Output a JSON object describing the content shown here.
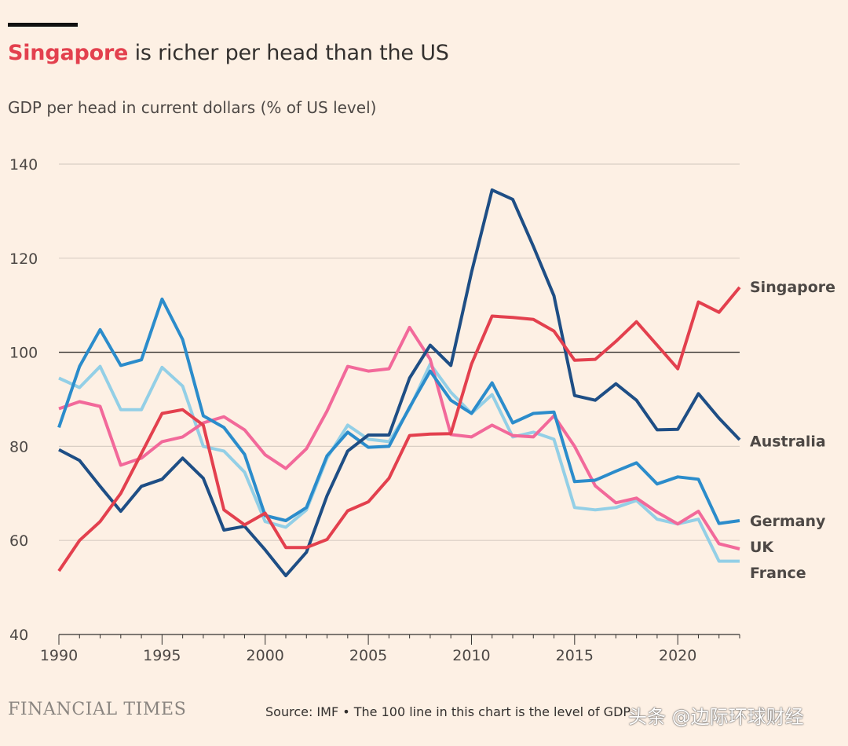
{
  "header": {
    "title_highlight": "Singapore",
    "title_rest": " is richer per head than the US",
    "subtitle": "GDP per head in current dollars (% of US level)"
  },
  "footer": {
    "brand": "FINANCIAL TIMES",
    "source": "Source: IMF • The 100 line in this chart is the level of GDP",
    "watermark": "头条 @边际环球财经"
  },
  "colors": {
    "background": "#fdf0e4",
    "gridline": "#d9cec4",
    "reference_line": "#33302e",
    "axis_text": "#4d4845"
  },
  "chart_data": {
    "type": "line",
    "title": "",
    "xlabel": "",
    "ylabel": "",
    "xlim": [
      1990,
      2023
    ],
    "ylim": [
      40,
      140
    ],
    "xticks": [
      1990,
      1995,
      2000,
      2005,
      2010,
      2015,
      2020
    ],
    "yticks": [
      40,
      60,
      80,
      100,
      120,
      140
    ],
    "reference_line": 100,
    "grid": true,
    "legend": "direct labels at right end of lines",
    "x": [
      1990,
      1991,
      1992,
      1993,
      1994,
      1995,
      1996,
      1997,
      1998,
      1999,
      2000,
      2001,
      2002,
      2003,
      2004,
      2005,
      2006,
      2007,
      2008,
      2009,
      2010,
      2011,
      2012,
      2013,
      2014,
      2015,
      2016,
      2017,
      2018,
      2019,
      2020,
      2021,
      2022,
      2023
    ],
    "series": [
      {
        "name": "France",
        "color": "#93cfe6",
        "values": [
          94.5,
          92.5,
          97,
          87.8,
          87.8,
          96.8,
          92.8,
          80,
          79,
          74.5,
          64,
          62.8,
          66.5,
          77.5,
          84.5,
          81.5,
          81,
          88,
          97.5,
          91.5,
          87,
          91,
          82,
          83,
          81.5,
          67,
          66.5,
          67,
          68.5,
          64.5,
          63.5,
          64.5,
          55.6,
          55.6
        ]
      },
      {
        "name": "UK",
        "color": "#f2699a",
        "values": [
          88,
          89.5,
          88.5,
          76,
          77.5,
          81,
          82,
          85,
          86.3,
          83.5,
          78.2,
          75.3,
          79.5,
          87.5,
          97,
          96,
          96.5,
          105.3,
          98.5,
          82.5,
          82,
          84.5,
          82.3,
          82,
          86.5,
          80,
          71.6,
          68,
          69,
          66,
          63.5,
          66.2,
          59.3,
          58.2
        ]
      },
      {
        "name": "Germany",
        "color": "#2b8ccb",
        "values": [
          84,
          97,
          104.8,
          97.2,
          98.4,
          111.3,
          102.7,
          86.5,
          84,
          78.3,
          65.3,
          64.2,
          67,
          78,
          83,
          79.8,
          80,
          88.3,
          96,
          89.8,
          87,
          93.5,
          85,
          87,
          87.3,
          72.5,
          72.8,
          74.7,
          76.5,
          72,
          73.5,
          73,
          63.6,
          64.2
        ]
      },
      {
        "name": "Australia",
        "color": "#1e4e85",
        "values": [
          79.3,
          77,
          71.5,
          66.2,
          71.5,
          73,
          77.5,
          73.2,
          62.2,
          63,
          58,
          52.5,
          57.5,
          69.5,
          79,
          82.4,
          82.4,
          94.5,
          101.5,
          97.2,
          117,
          134.5,
          132.5,
          122.5,
          112,
          90.8,
          89.8,
          93.3,
          89.8,
          83.5,
          83.6,
          91.2,
          86,
          81.4
        ]
      },
      {
        "name": "Singapore",
        "color": "#e3404e",
        "values": [
          53.5,
          60,
          64,
          70,
          78.5,
          87,
          87.8,
          84.5,
          66.5,
          63.3,
          65.8,
          58.5,
          58.5,
          60.2,
          66.3,
          68.2,
          73.2,
          82.3,
          82.6,
          82.7,
          97.5,
          107.7,
          107.4,
          107,
          104.5,
          98.3,
          98.5,
          102.3,
          106.5,
          101.5,
          96.5,
          110.7,
          108.5,
          113.8
        ]
      }
    ]
  }
}
